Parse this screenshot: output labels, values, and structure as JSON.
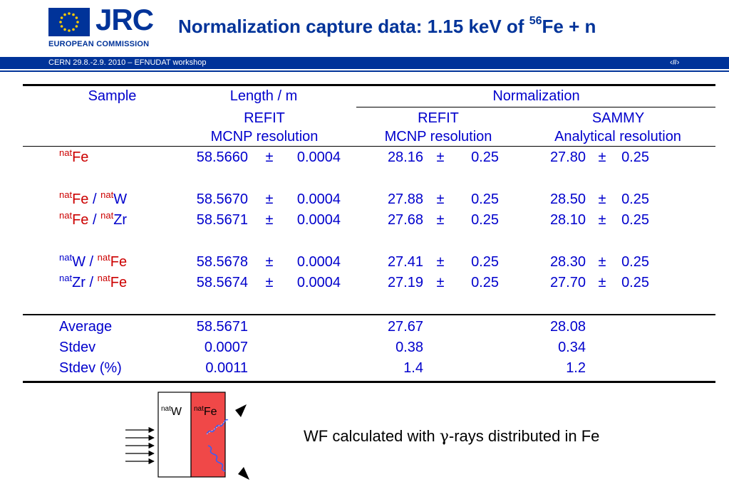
{
  "header": {
    "logo_text": "JRC",
    "org_text": "EUROPEAN COMMISSION",
    "title_main": "Normalization capture data: 1.15 keV of ",
    "title_sup": "56",
    "title_tail": "Fe + n"
  },
  "footer_bar": {
    "left": "CERN 29.8.-2.9. 2010 – EFNUDAT workshop",
    "right": "‹#›"
  },
  "table": {
    "headers": {
      "sample": "Sample",
      "length": "Length / m",
      "normalization": "Normalization",
      "refit": "REFIT",
      "mcnp_resolution": "MCNP resolution",
      "sammy": "SAMMY",
      "analytical_resolution": "Analytical resolution"
    },
    "pm": "±",
    "sep": "/",
    "nat": "nat",
    "rows": [
      {
        "s1": "Fe",
        "s2": "",
        "len": "58.5660",
        "len_err": "0.0004",
        "refit": "28.16",
        "refit_err": "0.25",
        "sammy": "27.80",
        "sammy_err": "0.25"
      },
      {
        "s1": "Fe",
        "s2": "W",
        "len": "58.5670",
        "len_err": "0.0004",
        "refit": "27.88",
        "refit_err": "0.25",
        "sammy": "28.50",
        "sammy_err": "0.25"
      },
      {
        "s1": "Fe",
        "s2": "Zr",
        "len": "58.5671",
        "len_err": "0.0004",
        "refit": "27.68",
        "refit_err": "0.25",
        "sammy": "28.10",
        "sammy_err": "0.25"
      },
      {
        "s1": "W",
        "s2": "Fe",
        "len": "58.5678",
        "len_err": "0.0004",
        "refit": "27.41",
        "refit_err": "0.25",
        "sammy": "28.30",
        "sammy_err": "0.25"
      },
      {
        "s1": "Zr",
        "s2": "Fe",
        "len": "58.5674",
        "len_err": "0.0004",
        "refit": "27.19",
        "refit_err": "0.25",
        "sammy": "27.70",
        "sammy_err": "0.25"
      }
    ],
    "stats": [
      {
        "label": "Average",
        "len": "58.5671",
        "refit": "27.67",
        "sammy": "28.08"
      },
      {
        "label": "Stdev",
        "len": "0.0007",
        "refit": "0.38",
        "sammy": "0.34"
      },
      {
        "label": "Stdev (%)",
        "len": "0.0011",
        "refit": "1.4",
        "sammy": "1.2"
      }
    ]
  },
  "figure": {
    "label_w": "W",
    "label_fe": "Fe",
    "nat": "nat",
    "caption_pre": "WF calculated with ",
    "caption_gamma": "γ",
    "caption_post": "-rays distributed in Fe",
    "colors": {
      "fe_block": "#f04848",
      "w_block": "#ffffff"
    }
  }
}
